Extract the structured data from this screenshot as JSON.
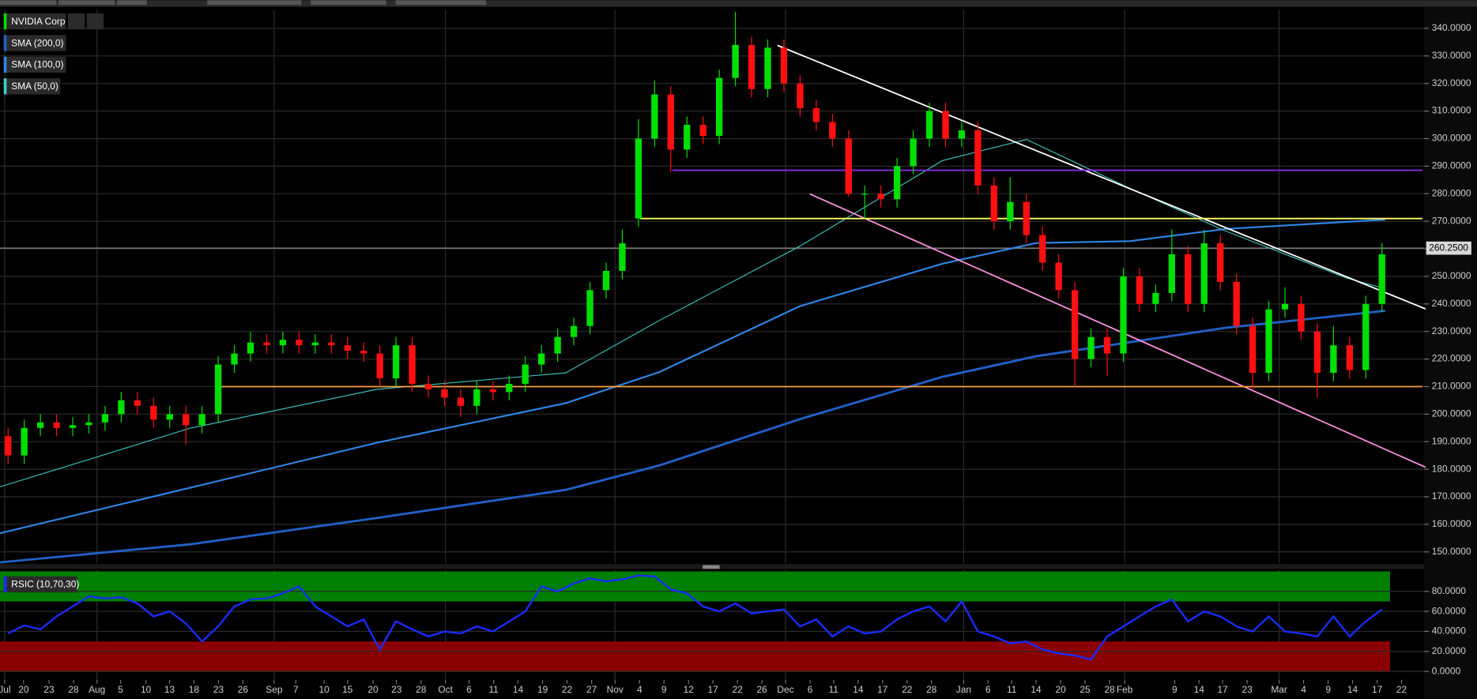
{
  "chart_data": [
    {
      "type": "candlestick",
      "name": "NVIDIA Corp",
      "up_color": "#00e000",
      "down_color": "#ff1010",
      "open": [
        192,
        185,
        195,
        197,
        195,
        196,
        197,
        200,
        205,
        203,
        198,
        200,
        196,
        200,
        218,
        222,
        226,
        225,
        227,
        225,
        226,
        225,
        223,
        222,
        213,
        225,
        211,
        209,
        206,
        203,
        209,
        208,
        211,
        218,
        222,
        228,
        232,
        245,
        252,
        271,
        300,
        316,
        296,
        305,
        301,
        322,
        334,
        318,
        333,
        320,
        311,
        306,
        300,
        280,
        280,
        278,
        290,
        300,
        310,
        300,
        303,
        283,
        270,
        277,
        265,
        255,
        245,
        220,
        228,
        222,
        250,
        240,
        244,
        258,
        240,
        262,
        248,
        232,
        215,
        238,
        240,
        230,
        215,
        225,
        216,
        240
      ],
      "high": [
        195,
        198,
        200,
        200,
        199,
        200,
        203,
        208,
        208,
        206,
        203,
        203,
        203,
        221,
        225,
        230,
        229,
        230,
        230,
        229,
        229,
        228,
        226,
        225,
        228,
        228,
        214,
        212,
        209,
        212,
        212,
        214,
        221,
        225,
        231,
        235,
        248,
        255,
        267,
        307,
        321,
        319,
        308,
        308,
        325,
        346,
        337,
        336,
        336,
        323,
        314,
        309,
        303,
        283,
        283,
        293,
        303,
        313,
        313,
        306,
        306,
        286,
        286,
        280,
        268,
        258,
        248,
        231,
        231,
        253,
        253,
        247,
        267,
        261,
        267,
        265,
        251,
        235,
        241,
        246,
        243,
        233,
        232,
        228,
        243,
        262
      ],
      "low": [
        182,
        182,
        192,
        192,
        192,
        193,
        194,
        197,
        200,
        195,
        195,
        189,
        193,
        197,
        215,
        219,
        222,
        222,
        222,
        222,
        222,
        220,
        219,
        210,
        210,
        208,
        206,
        203,
        199,
        200,
        205,
        205,
        208,
        215,
        219,
        225,
        229,
        242,
        249,
        268,
        297,
        288,
        293,
        298,
        298,
        319,
        315,
        315,
        317,
        308,
        303,
        297,
        279,
        271,
        275,
        275,
        287,
        297,
        297,
        297,
        280,
        267,
        267,
        262,
        252,
        242,
        210,
        217,
        214,
        219,
        237,
        237,
        241,
        237,
        237,
        245,
        229,
        209,
        212,
        235,
        227,
        206,
        212,
        213,
        213,
        237
      ],
      "close": [
        185,
        195,
        197,
        195,
        196,
        197,
        200,
        205,
        203,
        198,
        200,
        196,
        200,
        218,
        222,
        226,
        225,
        227,
        225,
        226,
        225,
        223,
        222,
        213,
        225,
        211,
        209,
        206,
        203,
        209,
        208,
        211,
        218,
        222,
        228,
        232,
        245,
        252,
        262,
        300,
        316,
        296,
        305,
        301,
        322,
        334,
        318,
        333,
        320,
        311,
        306,
        300,
        280,
        280,
        278,
        290,
        300,
        310,
        300,
        303,
        283,
        270,
        277,
        265,
        255,
        245,
        220,
        228,
        222,
        250,
        240,
        244,
        258,
        240,
        262,
        248,
        232,
        215,
        238,
        240,
        230,
        215,
        225,
        216,
        240,
        258
      ],
      "overlays": [
        {
          "name": "SMA (200,0)",
          "color": "#2360c8",
          "x": [
            0,
            11.7,
            23.3,
            35,
            40.8,
            49.5,
            58.3,
            64.1,
            75.8,
            85.7
          ],
          "values": [
            146.2,
            152.7,
            162.3,
            172.5,
            181.4,
            198.2,
            213.5,
            221,
            231.3,
            237.5
          ]
        },
        {
          "name": "SMA (100,0)",
          "color": "#2f86e6",
          "x": [
            0,
            11.7,
            23.3,
            35,
            40.8,
            49.5,
            58.3,
            64.1,
            69.9,
            75.8,
            85.7
          ],
          "values": [
            156.8,
            173.2,
            189.6,
            204,
            215.3,
            239.2,
            254.6,
            262.1,
            262.8,
            267.2,
            270.6
          ]
        },
        {
          "name": "SMA (50,0)",
          "color": "#3fd0c8",
          "x": [
            0,
            11.7,
            23.3,
            35,
            40.8,
            49.5,
            58.3,
            63.5,
            69.9,
            75.8,
            83.3,
            85.4
          ],
          "values": [
            173.6,
            194.8,
            209,
            215,
            234,
            261,
            292,
            299.7,
            282,
            266.5,
            249.4,
            246
          ]
        }
      ],
      "lines": [
        {
          "color": "#ffffff",
          "x": [
            48.1,
            88.2
          ],
          "values": [
            333.8,
            238.2
          ]
        },
        {
          "color": "#ff90e0",
          "x": [
            50.1,
            88.2
          ],
          "values": [
            279.9,
            180.7
          ]
        },
        {
          "color": "#8a2be2",
          "x": [
            41.6,
            88
          ],
          "values": [
            288.5,
            288.5
          ]
        },
        {
          "color": "#ffff66",
          "x": [
            39.6,
            88
          ],
          "values": [
            271,
            271
          ]
        },
        {
          "color": "#ffa040",
          "x": [
            13.5,
            88
          ],
          "values": [
            210,
            210
          ]
        }
      ],
      "last_price": {
        "value": 260.25,
        "label": "260.2500"
      },
      "xlim": [
        0,
        88
      ],
      "ylim": [
        145.9,
        346.8
      ],
      "yticks": [
        {
          "value": 150,
          "label": "150.0000"
        },
        {
          "value": 160,
          "label": "160.0000"
        },
        {
          "value": 170,
          "label": "170.0000"
        },
        {
          "value": 180,
          "label": "180.0000"
        },
        {
          "value": 190,
          "label": "190.0000"
        },
        {
          "value": 200,
          "label": "200.0000"
        },
        {
          "value": 210,
          "label": "210.0000"
        },
        {
          "value": 220,
          "label": "220.0000"
        },
        {
          "value": 230,
          "label": "230.0000"
        },
        {
          "value": 240,
          "label": "240.0000"
        },
        {
          "value": 250,
          "label": "250.0000"
        },
        {
          "value": 260,
          "label": "260.0000"
        },
        {
          "value": 270,
          "label": "270.0000"
        },
        {
          "value": 280,
          "label": "280.0000"
        },
        {
          "value": 290,
          "label": "290.0000"
        },
        {
          "value": 300,
          "label": "300.0000"
        },
        {
          "value": 310,
          "label": "310.0000"
        },
        {
          "value": 320,
          "label": "320.0000"
        },
        {
          "value": 330,
          "label": "330.0000"
        },
        {
          "value": 340,
          "label": "340.0000"
        }
      ],
      "xticks": [
        {
          "value": 0.29,
          "label": "Jul"
        },
        {
          "value": 1.46,
          "label": "20"
        },
        {
          "value": 3.03,
          "label": "23"
        },
        {
          "value": 4.55,
          "label": "28"
        },
        {
          "value": 6.0,
          "label": "Aug"
        },
        {
          "value": 7.46,
          "label": "5"
        },
        {
          "value": 9.03,
          "label": "10"
        },
        {
          "value": 10.49,
          "label": "13"
        },
        {
          "value": 12.0,
          "label": "18"
        },
        {
          "value": 13.52,
          "label": "23"
        },
        {
          "value": 15.03,
          "label": "26"
        },
        {
          "value": 16.96,
          "label": "Sep"
        },
        {
          "value": 18.3,
          "label": "7"
        },
        {
          "value": 20.05,
          "label": "10"
        },
        {
          "value": 21.5,
          "label": "15"
        },
        {
          "value": 23.08,
          "label": "20"
        },
        {
          "value": 24.53,
          "label": "23"
        },
        {
          "value": 26.05,
          "label": "28"
        },
        {
          "value": 27.56,
          "label": "Oct"
        },
        {
          "value": 29.02,
          "label": "6"
        },
        {
          "value": 30.54,
          "label": "11"
        },
        {
          "value": 32.05,
          "label": "14"
        },
        {
          "value": 33.57,
          "label": "19"
        },
        {
          "value": 35.08,
          "label": "22"
        },
        {
          "value": 36.6,
          "label": "27"
        },
        {
          "value": 38.05,
          "label": "Nov"
        },
        {
          "value": 39.57,
          "label": "4"
        },
        {
          "value": 41.08,
          "label": "9"
        },
        {
          "value": 42.6,
          "label": "12"
        },
        {
          "value": 44.11,
          "label": "17"
        },
        {
          "value": 45.63,
          "label": "22"
        },
        {
          "value": 47.14,
          "label": "26"
        },
        {
          "value": 48.6,
          "label": "Dec"
        },
        {
          "value": 50.12,
          "label": "6"
        },
        {
          "value": 51.57,
          "label": "11"
        },
        {
          "value": 53.09,
          "label": "14"
        },
        {
          "value": 54.6,
          "label": "17"
        },
        {
          "value": 56.12,
          "label": "22"
        },
        {
          "value": 57.63,
          "label": "28"
        },
        {
          "value": 59.62,
          "label": "Jan"
        },
        {
          "value": 61.13,
          "label": "6"
        },
        {
          "value": 62.59,
          "label": "11"
        },
        {
          "value": 64.1,
          "label": "14"
        },
        {
          "value": 65.62,
          "label": "20"
        },
        {
          "value": 67.13,
          "label": "25"
        },
        {
          "value": 68.65,
          "label": "28"
        },
        {
          "value": 69.58,
          "label": "Feb"
        },
        {
          "value": 72.67,
          "label": "9"
        },
        {
          "value": 74.18,
          "label": "14"
        },
        {
          "value": 75.64,
          "label": "17"
        },
        {
          "value": 77.16,
          "label": "23"
        },
        {
          "value": 79.14,
          "label": "Mar"
        },
        {
          "value": 80.65,
          "label": "4"
        },
        {
          "value": 82.17,
          "label": "9"
        },
        {
          "value": 83.68,
          "label": "14"
        },
        {
          "value": 85.2,
          "label": "17"
        },
        {
          "value": 86.71,
          "label": "22"
        }
      ]
    },
    {
      "type": "line",
      "series": [
        {
          "name": "RSIC (10,70,30)",
          "color": "#1a2cff",
          "values": [
            38,
            46,
            42,
            55,
            65,
            75,
            73,
            74,
            68,
            55,
            60,
            48,
            30,
            45,
            65,
            72,
            73,
            78,
            85,
            65,
            55,
            45,
            52,
            22,
            50,
            42,
            35,
            40,
            38,
            45,
            40,
            50,
            60,
            85,
            80,
            88,
            93,
            90,
            92,
            96,
            95,
            82,
            78,
            65,
            60,
            68,
            58,
            60,
            62,
            45,
            52,
            35,
            45,
            38,
            40,
            52,
            60,
            65,
            50,
            70,
            40,
            35,
            28,
            30,
            22,
            18,
            16,
            12,
            35,
            45,
            55,
            65,
            72,
            50,
            60,
            55,
            45,
            40,
            55,
            40,
            38,
            35,
            55,
            35,
            50,
            62
          ]
        }
      ],
      "zones": [
        {
          "range": [
            70,
            100
          ],
          "color": "#008000"
        },
        {
          "range": [
            0,
            30
          ],
          "color": "#8b0000"
        }
      ],
      "ylim": [
        -8.5,
        101.6
      ],
      "yticks": [
        {
          "value": 0,
          "label": "0.0000"
        },
        {
          "value": 20,
          "label": "20.0000"
        },
        {
          "value": 40,
          "label": "40.0000"
        },
        {
          "value": 60,
          "label": "60.0000"
        },
        {
          "value": 80,
          "label": "80.0000"
        }
      ]
    }
  ]
}
